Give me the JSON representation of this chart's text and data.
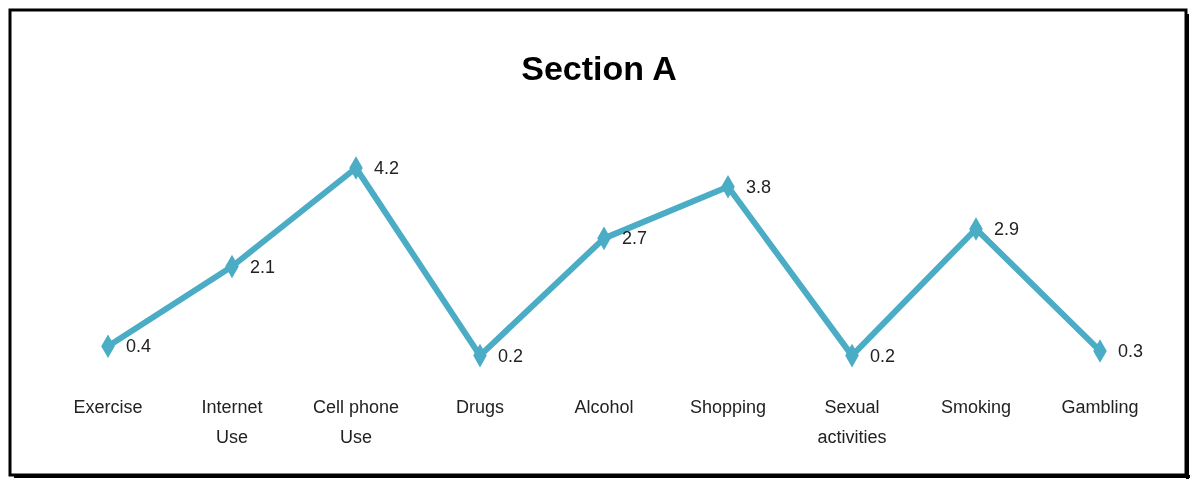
{
  "chart_data": {
    "type": "line",
    "title": "Section A",
    "categories": [
      "Exercise",
      "Internet Use",
      "Cell phone Use",
      "Drugs",
      "Alcohol",
      "Shopping",
      "Sexual activities",
      "Smoking",
      "Gambling"
    ],
    "series": [
      {
        "color": "#4bacc6",
        "values": [
          0.4,
          2.1,
          4.2,
          0.2,
          2.7,
          3.8,
          0.2,
          2.9,
          0.3
        ]
      }
    ],
    "data_labels": true,
    "marker": "diamond",
    "line_style": "solid"
  }
}
